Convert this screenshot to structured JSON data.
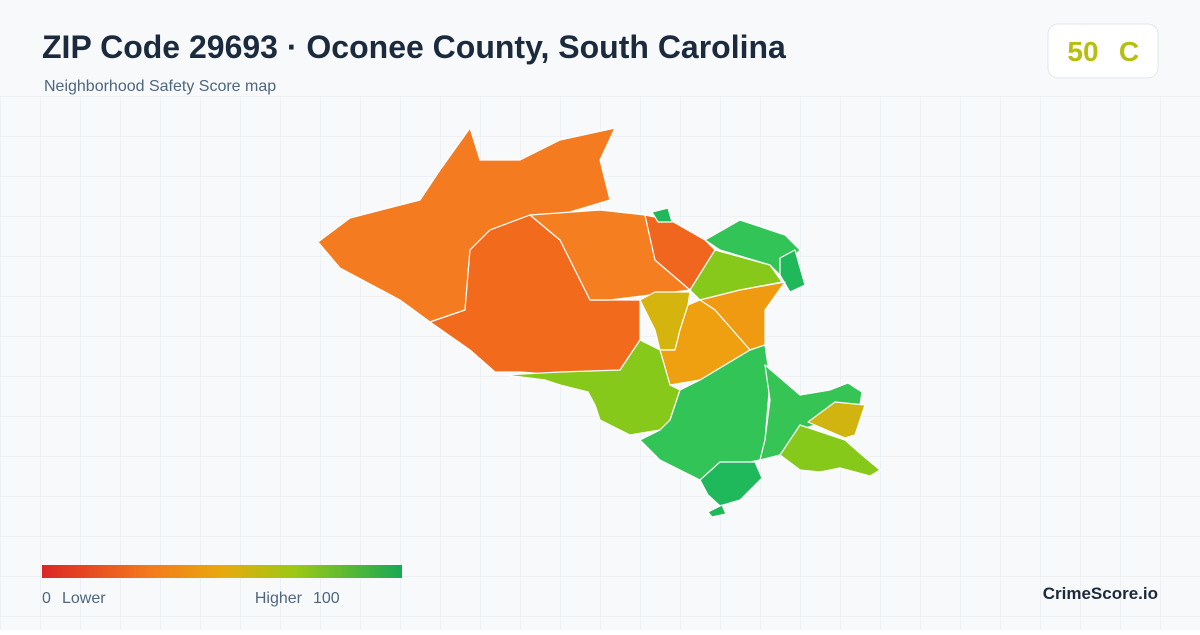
{
  "header": {
    "title": "ZIP Code 29693 · Oconee County, South Carolina",
    "subtitle": "Neighborhood Safety Score map"
  },
  "score": {
    "value": 50,
    "grade": "C"
  },
  "legend": {
    "min": 0,
    "min_label": "Lower",
    "max_label": "Higher",
    "max": 100
  },
  "brand": "CrimeScore.io"
}
